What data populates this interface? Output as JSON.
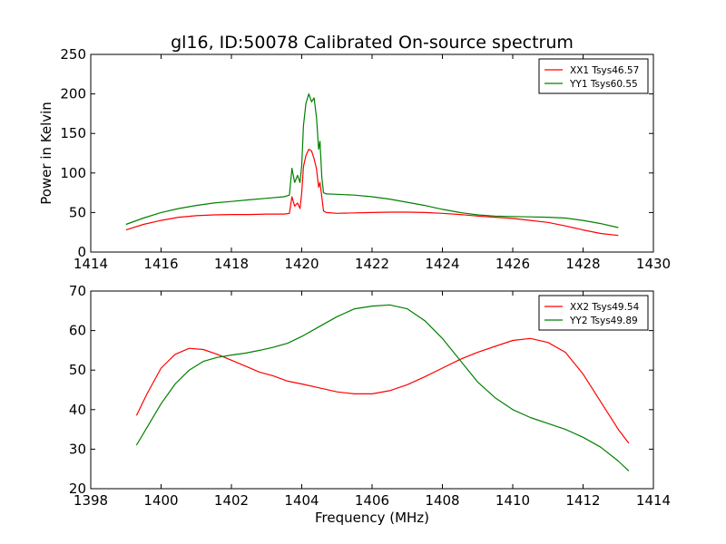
{
  "chart_data": [
    {
      "type": "line",
      "title": "gl16, ID:50078 Calibrated On-source spectrum",
      "xlabel": "",
      "ylabel": "Power in Kelvin",
      "xlim": [
        1414,
        1430
      ],
      "ylim": [
        0,
        250
      ],
      "xticks": [
        1414,
        1416,
        1418,
        1420,
        1422,
        1424,
        1426,
        1428,
        1430
      ],
      "yticks": [
        0,
        50,
        100,
        150,
        200,
        250
      ],
      "grid": false,
      "legend_position": "top-right",
      "series": [
        {
          "name": "XX1 Tsys46.57",
          "color": "#ff0000",
          "x": [
            1415.0,
            1415.5,
            1416.0,
            1416.5,
            1417.0,
            1417.5,
            1418.0,
            1418.5,
            1419.0,
            1419.5,
            1419.65,
            1419.72,
            1419.8,
            1419.88,
            1419.95,
            1420.0,
            1420.05,
            1420.12,
            1420.2,
            1420.28,
            1420.35,
            1420.42,
            1420.48,
            1420.52,
            1420.57,
            1420.62,
            1420.7,
            1421.0,
            1421.5,
            1422.0,
            1422.5,
            1423.0,
            1423.5,
            1424.0,
            1424.5,
            1425.0,
            1425.5,
            1426.0,
            1426.5,
            1427.0,
            1427.5,
            1428.0,
            1428.5,
            1429.0
          ],
          "y": [
            28,
            35,
            40,
            44,
            46,
            47,
            47.5,
            47.5,
            48,
            48,
            49,
            70,
            58,
            62,
            55,
            75,
            108,
            122,
            130,
            128,
            118,
            105,
            82,
            88,
            70,
            52,
            50,
            49,
            49.5,
            50,
            50.5,
            50.5,
            50,
            49,
            47.5,
            45.5,
            44,
            42.5,
            40,
            37.5,
            33,
            28,
            23.5,
            21
          ]
        },
        {
          "name": "YY1 Tsys60.55",
          "color": "#008000",
          "x": [
            1415.0,
            1415.5,
            1416.0,
            1416.5,
            1417.0,
            1417.5,
            1418.0,
            1418.5,
            1419.0,
            1419.5,
            1419.65,
            1419.72,
            1419.8,
            1419.88,
            1419.95,
            1420.0,
            1420.05,
            1420.12,
            1420.2,
            1420.28,
            1420.35,
            1420.42,
            1420.48,
            1420.52,
            1420.57,
            1420.62,
            1420.7,
            1421.0,
            1421.5,
            1422.0,
            1422.5,
            1423.0,
            1423.5,
            1424.0,
            1424.5,
            1425.0,
            1425.5,
            1426.0,
            1426.5,
            1427.0,
            1427.5,
            1428.0,
            1428.5,
            1429.0
          ],
          "y": [
            35,
            43,
            50,
            55,
            59,
            62,
            64,
            66,
            68,
            70,
            72,
            106,
            88,
            97,
            88,
            110,
            160,
            188,
            200,
            190,
            195,
            170,
            130,
            140,
            95,
            75,
            73.5,
            73,
            72,
            70,
            67,
            63,
            59,
            54,
            50,
            47,
            45.5,
            45,
            44.5,
            44,
            43,
            40,
            36,
            31
          ]
        }
      ]
    },
    {
      "type": "line",
      "title": "",
      "xlabel": "Frequency (MHz)",
      "ylabel": "",
      "xlim": [
        1398,
        1414
      ],
      "ylim": [
        20,
        70
      ],
      "xticks": [
        1398,
        1400,
        1402,
        1404,
        1406,
        1408,
        1410,
        1412,
        1414
      ],
      "yticks": [
        20,
        30,
        40,
        50,
        60,
        70
      ],
      "grid": false,
      "legend_position": "top-right",
      "series": [
        {
          "name": "XX2 Tsys49.54",
          "color": "#ff0000",
          "x": [
            1399.3,
            1399.6,
            1400.0,
            1400.4,
            1400.8,
            1401.2,
            1401.6,
            1402.0,
            1402.4,
            1402.8,
            1403.2,
            1403.6,
            1404.0,
            1404.5,
            1405.0,
            1405.5,
            1406.0,
            1406.5,
            1407.0,
            1407.5,
            1408.0,
            1408.5,
            1409.0,
            1409.5,
            1410.0,
            1410.5,
            1411.0,
            1411.5,
            1412.0,
            1412.5,
            1413.0,
            1413.3
          ],
          "y": [
            38.5,
            44,
            50.5,
            54,
            55.5,
            55.2,
            54,
            52.5,
            51,
            49.5,
            48.5,
            47.2,
            46.5,
            45.5,
            44.5,
            44,
            44,
            44.8,
            46.3,
            48.3,
            50.5,
            52.7,
            54.5,
            56,
            57.5,
            58,
            57,
            54.5,
            49,
            42,
            35,
            31.5
          ]
        },
        {
          "name": "YY2 Tsys49.89",
          "color": "#008000",
          "x": [
            1399.3,
            1399.6,
            1400.0,
            1400.4,
            1400.8,
            1401.2,
            1401.6,
            1402.0,
            1402.4,
            1402.8,
            1403.2,
            1403.6,
            1404.0,
            1404.5,
            1405.0,
            1405.5,
            1406.0,
            1406.5,
            1407.0,
            1407.5,
            1408.0,
            1408.5,
            1409.0,
            1409.5,
            1410.0,
            1410.5,
            1411.0,
            1411.5,
            1412.0,
            1412.5,
            1413.0,
            1413.3
          ],
          "y": [
            31,
            35.5,
            41.5,
            46.5,
            50,
            52.2,
            53.2,
            53.8,
            54.3,
            55,
            55.8,
            56.8,
            58.5,
            61,
            63.5,
            65.5,
            66.2,
            66.5,
            65.5,
            62.5,
            58,
            52.5,
            47,
            43,
            40,
            38,
            36.5,
            35,
            33,
            30.5,
            27,
            24.5
          ]
        }
      ]
    }
  ]
}
